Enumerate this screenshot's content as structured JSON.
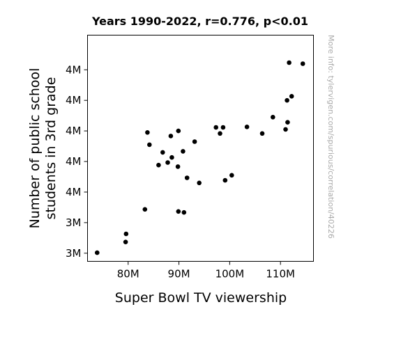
{
  "chart_data": {
    "type": "scatter",
    "title": "Years 1990-2022, r=0.776, p<0.01",
    "xlabel": "Super Bowl TV viewership",
    "ylabel_lines": [
      "Number of public school",
      "students in 3rd grade"
    ],
    "xlim": [
      72000000,
      116500000
    ],
    "ylim": [
      3484000,
      3928000
    ],
    "x_ticks": [
      {
        "value": 80000000,
        "label": "80M"
      },
      {
        "value": 90000000,
        "label": "90M"
      },
      {
        "value": 100000000,
        "label": "100M"
      },
      {
        "value": 110000000,
        "label": "110M"
      }
    ],
    "y_ticks": [
      {
        "value": 3500000,
        "label": "3M"
      },
      {
        "value": 3560000,
        "label": "3M"
      },
      {
        "value": 3620000,
        "label": "4M"
      },
      {
        "value": 3680000,
        "label": "4M"
      },
      {
        "value": 3740000,
        "label": "4M"
      },
      {
        "value": 3800000,
        "label": "4M"
      },
      {
        "value": 3860000,
        "label": "4M"
      }
    ],
    "grid": false,
    "marker_color": "#000000",
    "points": [
      {
        "x": 73900000,
        "y": 3501000
      },
      {
        "x": 79500000,
        "y": 3522000
      },
      {
        "x": 79600000,
        "y": 3538000
      },
      {
        "x": 83300000,
        "y": 3586000
      },
      {
        "x": 83800000,
        "y": 3737000
      },
      {
        "x": 84200000,
        "y": 3713000
      },
      {
        "x": 86000000,
        "y": 3673000
      },
      {
        "x": 86800000,
        "y": 3698000
      },
      {
        "x": 87800000,
        "y": 3678000
      },
      {
        "x": 88400000,
        "y": 3730000
      },
      {
        "x": 88600000,
        "y": 3688000
      },
      {
        "x": 89800000,
        "y": 3670000
      },
      {
        "x": 89900000,
        "y": 3740000
      },
      {
        "x": 89900000,
        "y": 3582000
      },
      {
        "x": 90800000,
        "y": 3700000
      },
      {
        "x": 91000000,
        "y": 3580000
      },
      {
        "x": 91600000,
        "y": 3648000
      },
      {
        "x": 93100000,
        "y": 3719000
      },
      {
        "x": 94000000,
        "y": 3638000
      },
      {
        "x": 97300000,
        "y": 3747000
      },
      {
        "x": 98100000,
        "y": 3735000
      },
      {
        "x": 98700000,
        "y": 3747000
      },
      {
        "x": 99100000,
        "y": 3643000
      },
      {
        "x": 100400000,
        "y": 3653000
      },
      {
        "x": 103400000,
        "y": 3748000
      },
      {
        "x": 106400000,
        "y": 3735000
      },
      {
        "x": 108500000,
        "y": 3767000
      },
      {
        "x": 111000000,
        "y": 3743000
      },
      {
        "x": 111300000,
        "y": 3800000
      },
      {
        "x": 111400000,
        "y": 3757000
      },
      {
        "x": 111700000,
        "y": 3874000
      },
      {
        "x": 112200000,
        "y": 3808000
      },
      {
        "x": 114400000,
        "y": 3872000
      }
    ]
  },
  "watermark": "More info: tylervigen.com/spurious/correlation/40226"
}
